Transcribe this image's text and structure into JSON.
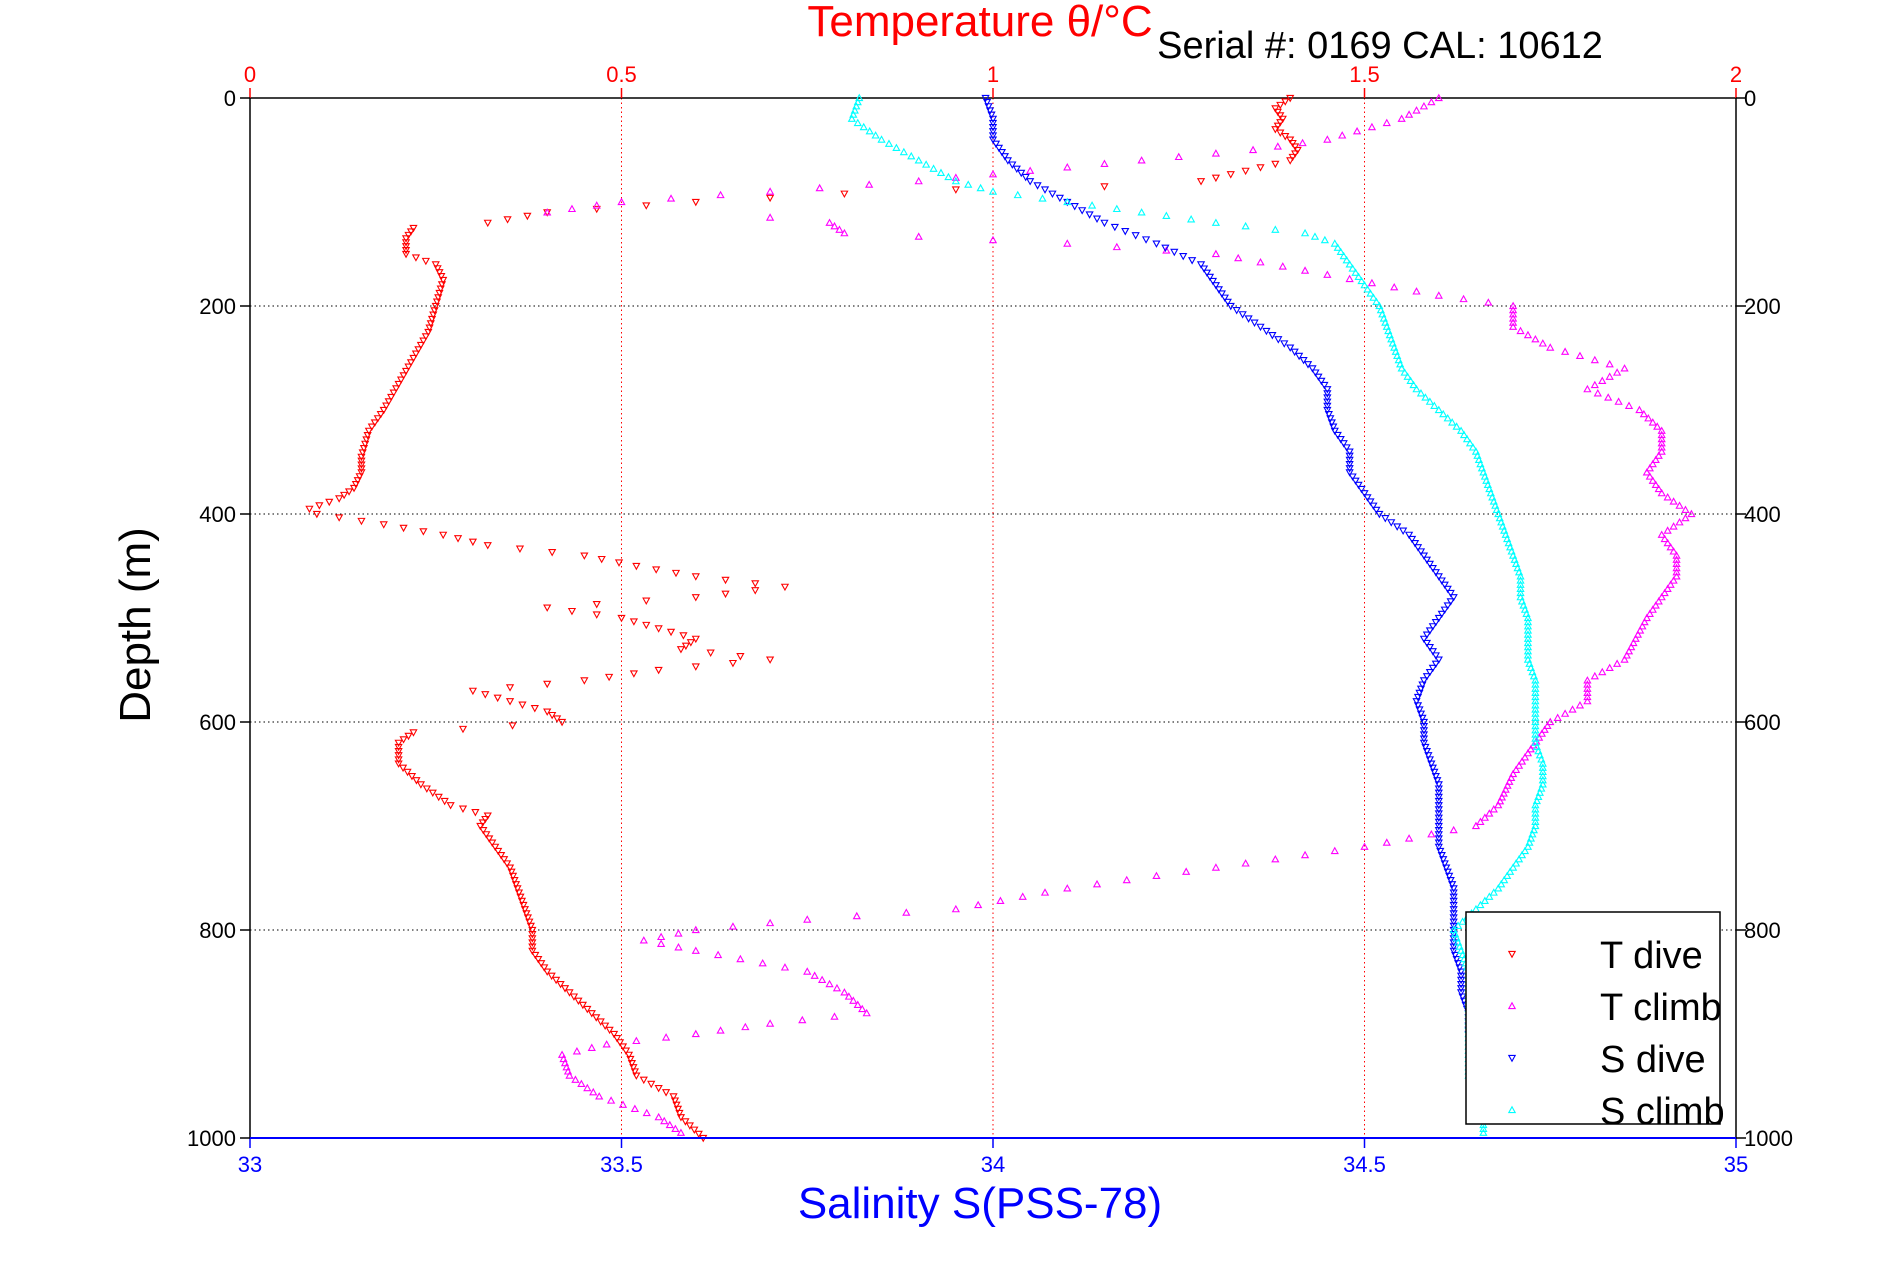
{
  "chart_data": {
    "type": "scatter",
    "title": "Temperature θ/°C",
    "annotation": "Serial #: 0169 CAL: 10612",
    "xlabel": "Salinity S(PSS-78)",
    "ylabel": "Depth (m)",
    "x_bottom": {
      "label": "Salinity S(PSS-78)",
      "range": [
        33,
        35
      ],
      "ticks": [
        "33",
        "33.5",
        "34",
        "34.5",
        "35"
      ],
      "tick_values": [
        33,
        33.5,
        34,
        34.5,
        35
      ],
      "color": "#0000ff"
    },
    "x_top": {
      "label": "Temperature θ/°C",
      "range": [
        0,
        2
      ],
      "ticks": [
        "0",
        "0.5",
        "1",
        "1.5",
        "2"
      ],
      "tick_values": [
        0,
        0.5,
        1,
        1.5,
        2
      ],
      "color": "#ff0000"
    },
    "y": {
      "label": "Depth (m)",
      "range": [
        0,
        1000
      ],
      "reversed": true,
      "ticks": [
        "0",
        "200",
        "400",
        "600",
        "800",
        "1000"
      ],
      "tick_values": [
        0,
        200,
        400,
        600,
        800,
        1000
      ]
    },
    "grid": true,
    "legend_position": "bottom-right",
    "series": [
      {
        "name": "T dive",
        "axis": "temperature",
        "color": "#ff0000",
        "marker": "triangle-down",
        "points": [
          [
            1.4,
            0
          ],
          [
            1.38,
            10
          ],
          [
            1.39,
            20
          ],
          [
            1.38,
            30
          ],
          [
            1.4,
            40
          ],
          [
            1.41,
            50
          ],
          [
            1.4,
            60
          ],
          [
            1.34,
            70
          ],
          [
            1.28,
            80
          ],
          [
            1.15,
            85
          ],
          [
            0.95,
            88
          ],
          [
            0.8,
            92
          ],
          [
            0.6,
            100
          ],
          [
            0.4,
            110
          ],
          [
            0.32,
            120
          ],
          [
            0.22,
            125
          ],
          [
            0.21,
            135
          ],
          [
            0.21,
            150
          ],
          [
            0.25,
            160
          ],
          [
            0.26,
            175
          ],
          [
            0.25,
            200
          ],
          [
            0.24,
            225
          ],
          [
            0.22,
            250
          ],
          [
            0.2,
            275
          ],
          [
            0.18,
            300
          ],
          [
            0.16,
            320
          ],
          [
            0.15,
            345
          ],
          [
            0.15,
            360
          ],
          [
            0.14,
            375
          ],
          [
            0.12,
            385
          ],
          [
            0.08,
            395
          ],
          [
            0.09,
            400
          ],
          [
            0.18,
            410
          ],
          [
            0.26,
            420
          ],
          [
            0.32,
            430
          ],
          [
            0.45,
            440
          ],
          [
            0.52,
            450
          ],
          [
            0.6,
            460
          ],
          [
            0.72,
            470
          ],
          [
            0.6,
            480
          ],
          [
            0.4,
            490
          ],
          [
            0.5,
            500
          ],
          [
            0.55,
            510
          ],
          [
            0.6,
            520
          ],
          [
            0.58,
            530
          ],
          [
            0.7,
            540
          ],
          [
            0.55,
            550
          ],
          [
            0.45,
            560
          ],
          [
            0.3,
            570
          ],
          [
            0.35,
            580
          ],
          [
            0.4,
            590
          ],
          [
            0.42,
            600
          ],
          [
            0.22,
            610
          ],
          [
            0.2,
            620
          ],
          [
            0.2,
            640
          ],
          [
            0.23,
            660
          ],
          [
            0.27,
            680
          ],
          [
            0.32,
            690
          ],
          [
            0.31,
            700
          ],
          [
            0.33,
            720
          ],
          [
            0.35,
            740
          ],
          [
            0.36,
            760
          ],
          [
            0.37,
            780
          ],
          [
            0.38,
            800
          ],
          [
            0.38,
            820
          ],
          [
            0.4,
            840
          ],
          [
            0.43,
            860
          ],
          [
            0.46,
            880
          ],
          [
            0.49,
            900
          ],
          [
            0.51,
            920
          ],
          [
            0.52,
            940
          ],
          [
            0.57,
            960
          ],
          [
            0.58,
            980
          ],
          [
            0.61,
            1000
          ]
        ]
      },
      {
        "name": "T climb",
        "axis": "temperature",
        "color": "#ff00ff",
        "marker": "triangle-up",
        "points": [
          [
            1.6,
            0
          ],
          [
            1.55,
            20
          ],
          [
            1.45,
            40
          ],
          [
            1.35,
            50
          ],
          [
            1.2,
            60
          ],
          [
            1.05,
            70
          ],
          [
            0.9,
            80
          ],
          [
            0.7,
            90
          ],
          [
            0.5,
            100
          ],
          [
            0.4,
            110
          ],
          [
            0.7,
            115
          ],
          [
            0.78,
            120
          ],
          [
            0.8,
            130
          ],
          [
            1.1,
            140
          ],
          [
            1.3,
            150
          ],
          [
            1.45,
            170
          ],
          [
            1.6,
            190
          ],
          [
            1.7,
            200
          ],
          [
            1.7,
            220
          ],
          [
            1.75,
            240
          ],
          [
            1.85,
            260
          ],
          [
            1.8,
            280
          ],
          [
            1.87,
            300
          ],
          [
            1.9,
            320
          ],
          [
            1.9,
            340
          ],
          [
            1.88,
            360
          ],
          [
            1.9,
            380
          ],
          [
            1.94,
            400
          ],
          [
            1.9,
            420
          ],
          [
            1.92,
            440
          ],
          [
            1.92,
            460
          ],
          [
            1.9,
            480
          ],
          [
            1.88,
            500
          ],
          [
            1.85,
            540
          ],
          [
            1.8,
            560
          ],
          [
            1.8,
            580
          ],
          [
            1.75,
            600
          ],
          [
            1.72,
            630
          ],
          [
            1.7,
            650
          ],
          [
            1.68,
            680
          ],
          [
            1.65,
            700
          ],
          [
            1.5,
            720
          ],
          [
            1.3,
            740
          ],
          [
            1.1,
            760
          ],
          [
            0.95,
            780
          ],
          [
            0.75,
            790
          ],
          [
            0.6,
            800
          ],
          [
            0.53,
            810
          ],
          [
            0.6,
            820
          ],
          [
            0.75,
            840
          ],
          [
            0.8,
            860
          ],
          [
            0.83,
            880
          ],
          [
            0.7,
            890
          ],
          [
            0.6,
            900
          ],
          [
            0.48,
            910
          ],
          [
            0.42,
            920
          ],
          [
            0.43,
            940
          ],
          [
            0.47,
            960
          ],
          [
            0.55,
            980
          ],
          [
            0.58,
            995
          ]
        ]
      },
      {
        "name": "S dive",
        "axis": "salinity",
        "color": "#0000ff",
        "marker": "triangle-down",
        "points": [
          [
            33.99,
            0
          ],
          [
            34.0,
            20
          ],
          [
            34.0,
            40
          ],
          [
            34.02,
            60
          ],
          [
            34.05,
            80
          ],
          [
            34.1,
            100
          ],
          [
            34.15,
            120
          ],
          [
            34.22,
            140
          ],
          [
            34.28,
            160
          ],
          [
            34.3,
            180
          ],
          [
            34.32,
            200
          ],
          [
            34.36,
            220
          ],
          [
            34.4,
            240
          ],
          [
            34.43,
            260
          ],
          [
            34.45,
            280
          ],
          [
            34.45,
            300
          ],
          [
            34.46,
            320
          ],
          [
            34.48,
            340
          ],
          [
            34.48,
            360
          ],
          [
            34.5,
            380
          ],
          [
            34.52,
            400
          ],
          [
            34.56,
            420
          ],
          [
            34.58,
            440
          ],
          [
            34.6,
            460
          ],
          [
            34.62,
            480
          ],
          [
            34.6,
            500
          ],
          [
            34.58,
            520
          ],
          [
            34.6,
            540
          ],
          [
            34.58,
            560
          ],
          [
            34.57,
            580
          ],
          [
            34.58,
            600
          ],
          [
            34.58,
            620
          ],
          [
            34.59,
            640
          ],
          [
            34.6,
            660
          ],
          [
            34.6,
            680
          ],
          [
            34.6,
            700
          ],
          [
            34.6,
            720
          ],
          [
            34.61,
            740
          ],
          [
            34.62,
            760
          ],
          [
            34.62,
            780
          ],
          [
            34.62,
            800
          ],
          [
            34.62,
            820
          ],
          [
            34.63,
            840
          ],
          [
            34.63,
            860
          ],
          [
            34.64,
            880
          ],
          [
            34.64,
            900
          ]
        ]
      },
      {
        "name": "S climb",
        "axis": "salinity",
        "color": "#00ffff",
        "marker": "triangle-up",
        "points": [
          [
            33.82,
            0
          ],
          [
            33.81,
            20
          ],
          [
            33.85,
            40
          ],
          [
            33.9,
            60
          ],
          [
            33.95,
            80
          ],
          [
            34.0,
            90
          ],
          [
            34.1,
            100
          ],
          [
            34.2,
            110
          ],
          [
            34.3,
            120
          ],
          [
            34.42,
            130
          ],
          [
            34.46,
            140
          ],
          [
            34.48,
            160
          ],
          [
            34.5,
            180
          ],
          [
            34.52,
            200
          ],
          [
            34.53,
            220
          ],
          [
            34.54,
            240
          ],
          [
            34.55,
            260
          ],
          [
            34.57,
            280
          ],
          [
            34.6,
            300
          ],
          [
            34.63,
            320
          ],
          [
            34.65,
            340
          ],
          [
            34.66,
            360
          ],
          [
            34.67,
            380
          ],
          [
            34.68,
            400
          ],
          [
            34.69,
            420
          ],
          [
            34.7,
            440
          ],
          [
            34.71,
            460
          ],
          [
            34.71,
            480
          ],
          [
            34.72,
            500
          ],
          [
            34.72,
            520
          ],
          [
            34.72,
            540
          ],
          [
            34.73,
            560
          ],
          [
            34.73,
            580
          ],
          [
            34.73,
            600
          ],
          [
            34.73,
            620
          ],
          [
            34.74,
            640
          ],
          [
            34.74,
            660
          ],
          [
            34.73,
            680
          ],
          [
            34.73,
            700
          ],
          [
            34.72,
            720
          ],
          [
            34.7,
            740
          ],
          [
            34.68,
            760
          ],
          [
            34.65,
            780
          ],
          [
            34.62,
            800
          ],
          [
            34.63,
            820
          ],
          [
            34.64,
            840
          ],
          [
            34.64,
            860
          ],
          [
            34.64,
            880
          ],
          [
            34.64,
            900
          ],
          [
            34.64,
            920
          ],
          [
            34.64,
            940
          ],
          [
            34.65,
            960
          ],
          [
            34.66,
            980
          ],
          [
            34.66,
            995
          ]
        ]
      }
    ]
  }
}
